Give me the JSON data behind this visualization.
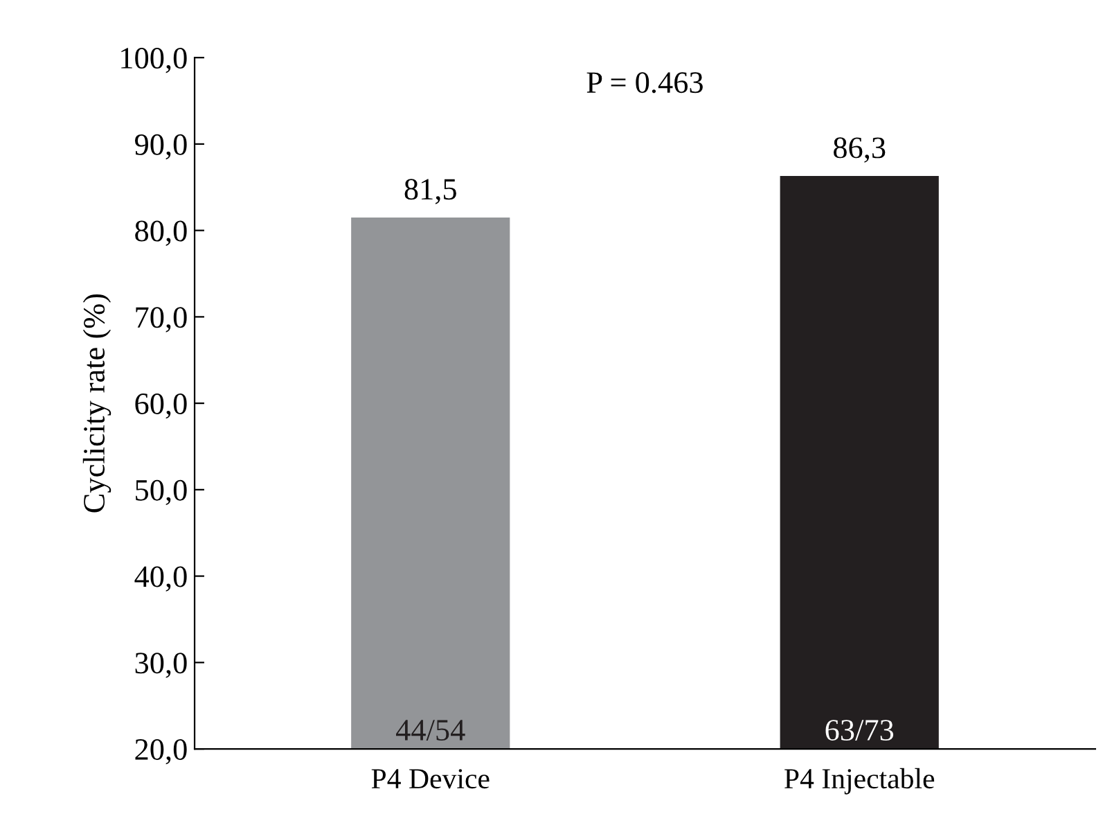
{
  "chart_data": {
    "type": "bar",
    "ylabel": "Cyclicity rate (%)",
    "categories": [
      "P4 Device",
      "P4 Injectable"
    ],
    "values": [
      81.5,
      86.3
    ],
    "colors": [
      "#939598",
      "#231f20"
    ],
    "value_labels": [
      "81,5",
      "86,3"
    ],
    "ylim": [
      20,
      100
    ],
    "yticks": [
      {
        "value": 20,
        "label": "20,0"
      },
      {
        "value": 30,
        "label": "30,0"
      },
      {
        "value": 40,
        "label": "40,0"
      },
      {
        "value": 50,
        "label": "50,0"
      },
      {
        "value": 60,
        "label": "60,0"
      },
      {
        "value": 70,
        "label": "70,0"
      },
      {
        "value": 80,
        "label": "80,0"
      },
      {
        "value": 90,
        "label": "90,0"
      },
      {
        "value": 100,
        "label": "100,0"
      }
    ],
    "annotations": [
      "P = 0.463",
      "44/54",
      "63/73"
    ],
    "grid": false
  }
}
